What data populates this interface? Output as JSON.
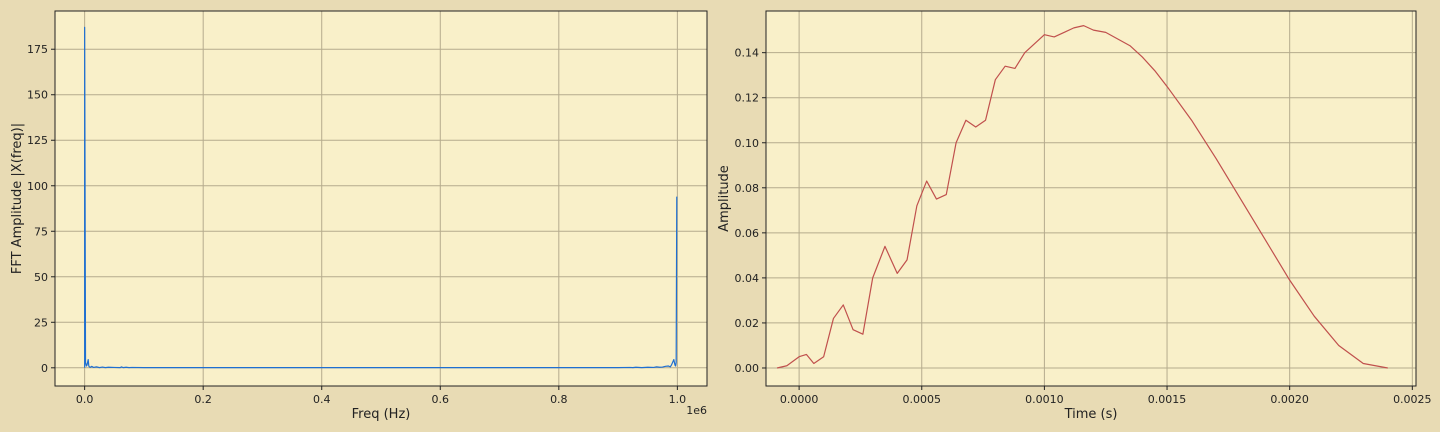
{
  "colors": {
    "figure_bg": "#e8dbb4",
    "axes_bg": "#f9f0c9",
    "grid": "#b5ab8d",
    "spine": "#222222",
    "fft_line": "#1f6fd1",
    "time_line": "#c0504d"
  },
  "chart_data": [
    {
      "type": "line",
      "xlabel": "Freq (Hz)",
      "ylabel": "FFT Amplitude |X(freq)|",
      "x_offset_label": "1e6",
      "xlim": [
        -0.05,
        1.05
      ],
      "ylim": [
        -10,
        196
      ],
      "grid": true,
      "xticks": [
        0.0,
        0.2,
        0.4,
        0.6,
        0.8,
        1.0
      ],
      "xtick_labels": [
        "0.0",
        "0.2",
        "0.4",
        "0.6",
        "0.8",
        "1.0"
      ],
      "yticks": [
        0,
        25,
        50,
        75,
        100,
        125,
        150,
        175
      ],
      "ytick_labels": [
        "0",
        "25",
        "50",
        "75",
        "100",
        "125",
        "150",
        "175"
      ],
      "series": [
        {
          "x": [
            0.0,
            0.0,
            0.0015,
            0.003,
            0.004,
            0.005,
            0.006,
            0.007,
            0.008,
            0.01,
            0.012,
            0.015,
            0.02,
            0.025,
            0.03,
            0.035,
            0.04,
            0.05,
            0.06,
            0.062,
            0.065,
            0.07,
            0.075,
            0.08,
            0.1,
            0.2,
            0.3,
            0.4,
            0.5,
            0.6,
            0.7,
            0.8,
            0.9,
            0.92,
            0.925,
            0.93,
            0.94,
            0.95,
            0.96,
            0.965,
            0.97,
            0.975,
            0.98,
            0.985,
            0.988,
            0.99,
            0.992,
            0.994,
            0.996,
            0.997,
            0.998,
            0.999
          ],
          "y": [
            0,
            187,
            3,
            1,
            1.5,
            3,
            4.5,
            1,
            0.5,
            0.3,
            0.8,
            0.2,
            0.5,
            0.1,
            0.4,
            0.1,
            0.3,
            0.2,
            0.1,
            0.5,
            0.1,
            0.3,
            0.1,
            0.2,
            0.1,
            0.1,
            0.1,
            0.1,
            0.1,
            0.1,
            0.1,
            0.1,
            0.1,
            0.2,
            0.1,
            0.3,
            0.1,
            0.3,
            0.2,
            0.5,
            0.3,
            0.4,
            0.8,
            1,
            0.5,
            1.5,
            3,
            4.5,
            1.5,
            1,
            3,
            94
          ]
        }
      ]
    },
    {
      "type": "line",
      "xlabel": "Time (s)",
      "ylabel": "Amplitude",
      "xlim": [
        -0.000135,
        0.002515
      ],
      "ylim": [
        -0.008,
        0.1585
      ],
      "grid": true,
      "xticks": [
        0.0,
        0.0005,
        0.001,
        0.0015,
        0.002,
        0.0025
      ],
      "xtick_labels": [
        "0.0000",
        "0.0005",
        "0.0010",
        "0.0015",
        "0.0020",
        "0.0025"
      ],
      "yticks": [
        0.0,
        0.02,
        0.04,
        0.06,
        0.08,
        0.1,
        0.12,
        0.14
      ],
      "ytick_labels": [
        "0.00",
        "0.02",
        "0.04",
        "0.06",
        "0.08",
        "0.10",
        "0.12",
        "0.14"
      ],
      "series": [
        {
          "x": [
            -9e-05,
            -5e-05,
            0.0,
            3e-05,
            6e-05,
            0.0001,
            0.00014,
            0.00018,
            0.00022,
            0.00026,
            0.0003,
            0.00035,
            0.0004,
            0.00044,
            0.00048,
            0.00052,
            0.00056,
            0.0006,
            0.00064,
            0.00068,
            0.00072,
            0.00076,
            0.0008,
            0.00084,
            0.00088,
            0.00092,
            0.00096,
            0.001,
            0.00104,
            0.00108,
            0.00112,
            0.00116,
            0.0012,
            0.00125,
            0.0013,
            0.00135,
            0.0014,
            0.00145,
            0.0015,
            0.0016,
            0.0017,
            0.0018,
            0.0019,
            0.002,
            0.0021,
            0.0022,
            0.0023,
            0.0024
          ],
          "y": [
            0.0,
            0.001,
            0.005,
            0.006,
            0.002,
            0.005,
            0.022,
            0.028,
            0.017,
            0.015,
            0.04,
            0.054,
            0.042,
            0.048,
            0.072,
            0.083,
            0.075,
            0.077,
            0.1,
            0.11,
            0.107,
            0.11,
            0.128,
            0.134,
            0.133,
            0.14,
            0.144,
            0.148,
            0.147,
            0.149,
            0.151,
            0.152,
            0.15,
            0.149,
            0.146,
            0.143,
            0.138,
            0.132,
            0.125,
            0.11,
            0.093,
            0.075,
            0.057,
            0.039,
            0.023,
            0.01,
            0.002,
            0.0
          ]
        }
      ]
    }
  ]
}
